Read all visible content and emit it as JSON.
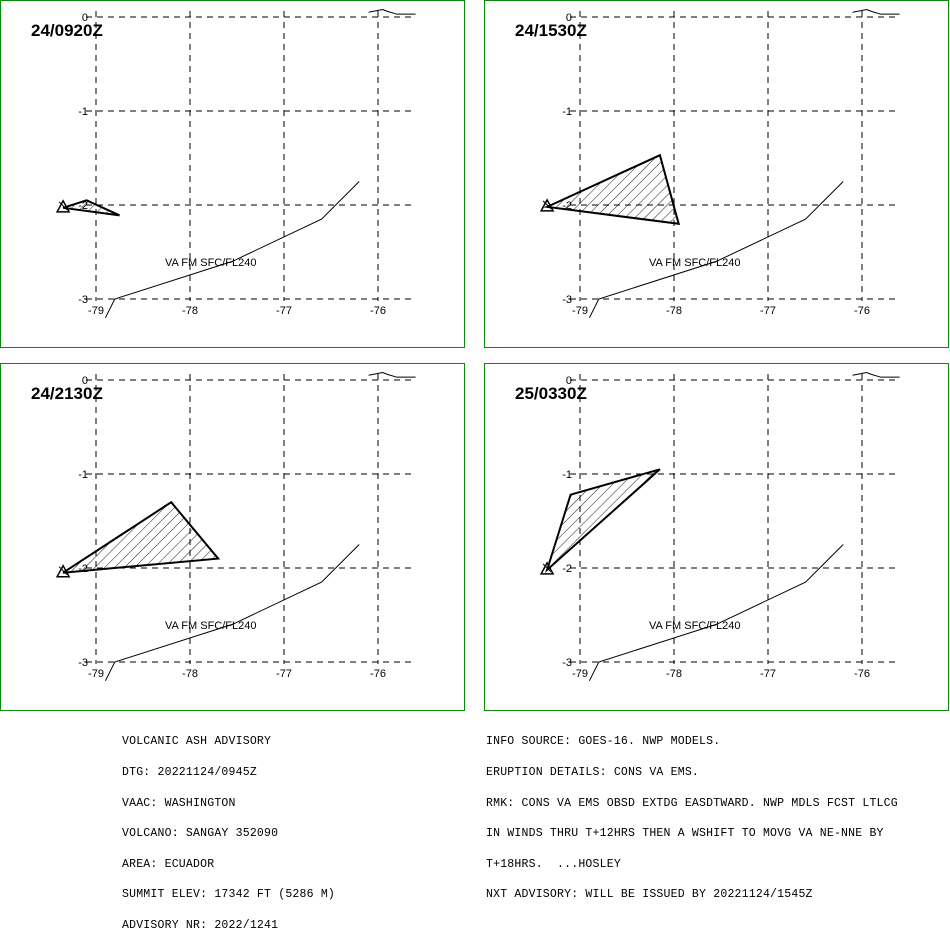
{
  "panels": [
    {
      "time": "24/0920Z",
      "label": "VA FM SFC/FL240",
      "polygon": [
        [
          -79.35,
          -2.03
        ],
        [
          -79.1,
          -1.95
        ],
        [
          -78.75,
          -2.11
        ]
      ],
      "volcano": [
        -79.35,
        -2.03
      ]
    },
    {
      "time": "24/1530Z",
      "label": "VA FM SFC/FL240",
      "polygon": [
        [
          -79.35,
          -2.02
        ],
        [
          -78.15,
          -1.47
        ],
        [
          -77.95,
          -2.2
        ]
      ],
      "volcano": [
        -79.35,
        -2.02
      ]
    },
    {
      "time": "24/2130Z",
      "label": "VA FM SFC/FL240",
      "polygon": [
        [
          -79.35,
          -2.05
        ],
        [
          -78.2,
          -1.3
        ],
        [
          -77.7,
          -1.9
        ]
      ],
      "volcano": [
        -79.35,
        -2.05
      ]
    },
    {
      "time": "25/0330Z",
      "label": "VA FM SFC/FL240",
      "polygon": [
        [
          -79.35,
          -2.02
        ],
        [
          -79.1,
          -1.22
        ],
        [
          -78.15,
          -0.95
        ]
      ],
      "volcano": [
        -79.35,
        -2.02
      ]
    }
  ],
  "axes": {
    "lon_ticks": [
      "-79",
      "-78",
      "-77",
      "-76"
    ],
    "lat_ticks": [
      "0",
      "-1",
      "-2",
      "-3"
    ],
    "lon_values": [
      -79,
      -78,
      -77,
      -76
    ],
    "lat_values": [
      0,
      -1,
      -2,
      -3
    ]
  },
  "coastline_top": [
    [
      -76.1,
      0.05
    ],
    [
      -75.95,
      0.08
    ],
    [
      -75.9,
      0.06
    ],
    [
      -75.8,
      0.03
    ],
    [
      -75.6,
      0.03
    ]
  ],
  "border_line": [
    [
      -78.9,
      -3.2
    ],
    [
      -78.8,
      -3.0
    ],
    [
      -77.55,
      -2.6
    ],
    [
      -76.6,
      -2.15
    ],
    [
      -76.2,
      -1.75
    ]
  ],
  "advisory_left": [
    "VOLCANIC ASH ADVISORY",
    "DTG: 20221124/0945Z",
    "VAAC: WASHINGTON",
    "VOLCANO: SANGAY 352090",
    "AREA: ECUADOR",
    "SUMMIT ELEV: 17342 FT (5286 M)",
    "ADVISORY NR: 2022/1241"
  ],
  "advisory_right": [
    "INFO SOURCE: GOES-16. NWP MODELS.",
    "ERUPTION DETAILS: CONS VA EMS.",
    "RMK: CONS VA EMS OBSD EXTDG EASDTWARD. NWP MDLS FCST LTLCG",
    "IN WINDS THRU T+12HRS THEN A WSHIFT TO MOVG VA NE-NNE BY",
    "T+18HRS.  ...HOSLEY",
    "NXT ADVISORY: WILL BE ISSUED BY 20221124/1545Z"
  ],
  "colors": {
    "panel_border": "#0a8a0a",
    "ink": "#000000"
  }
}
